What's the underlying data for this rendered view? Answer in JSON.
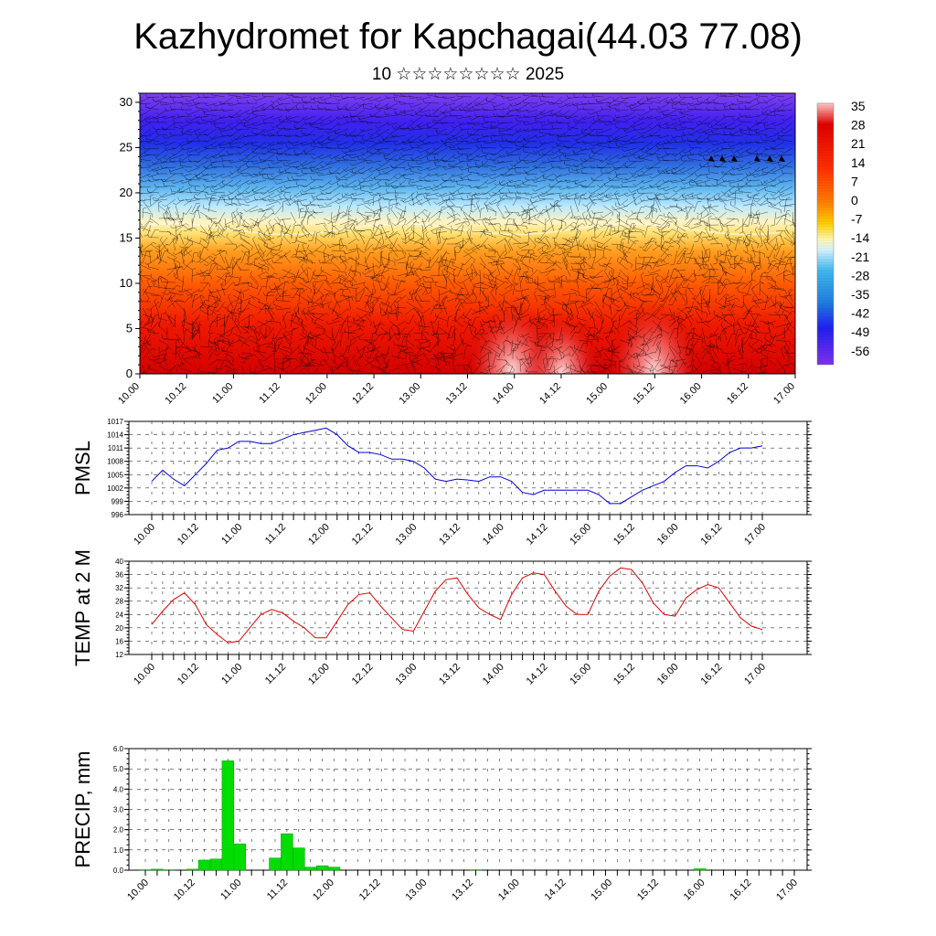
{
  "title": "Kazhydromet for Kapchagai(44.03 77.08)",
  "subtitle": "10 ☆☆☆☆☆☆☆☆ 2025",
  "colors": {
    "pmsl_line": "#0000dd",
    "temp_line": "#dd0000",
    "precip_bar": "#00dd00",
    "precip_edge": "#009900"
  },
  "chart_data": [
    {
      "id": "cross_section",
      "type": "heatmap",
      "title": "",
      "ylim": [
        0,
        31
      ],
      "yticks": [
        "0",
        "5",
        "10",
        "15",
        "20",
        "25",
        "30"
      ],
      "xticks": [
        "10.00",
        "10.12",
        "11.00",
        "11.12",
        "12.00",
        "12.12",
        "13.00",
        "13.12",
        "14.00",
        "14.12",
        "15.00",
        "15.12",
        "16.00",
        "16.12",
        "17.00"
      ],
      "colorbar_labels": [
        "35",
        "28",
        "21",
        "14",
        "7",
        "0",
        "-7",
        "-14",
        "-21",
        "-28",
        "-35",
        "-42",
        "-49",
        "-56"
      ],
      "zero_isotherm_level": 16
    },
    {
      "id": "pmsl",
      "type": "line",
      "ylabel": "PMSL",
      "ylim": [
        996,
        1017
      ],
      "yticks": [
        "996",
        "999",
        "1002",
        "1005",
        "1008",
        "1011",
        "1014",
        "1017"
      ],
      "xticks": [
        "10.00",
        "10.12",
        "11.00",
        "11.12",
        "12.00",
        "12.12",
        "13.00",
        "13.12",
        "14.00",
        "14.12",
        "15.00",
        "15.12",
        "16.00",
        "16.12",
        "17.00"
      ],
      "series": [
        {
          "values": [
            1003.5,
            1006,
            1004,
            1002.5,
            1005,
            1007.5,
            1010.5,
            1011,
            1012.5,
            1012.5,
            1012,
            1012,
            1013,
            1014,
            1014.5,
            1015,
            1015.5,
            1014,
            1011.5,
            1010,
            1010,
            1009.5,
            1008.5,
            1008.5,
            1008,
            1006.5,
            1004,
            1003.5,
            1004,
            1003.8,
            1003.5,
            1004.5,
            1004.5,
            1003.5,
            1001,
            1000.5,
            1001.5,
            1001.5,
            1001.5,
            1001.5,
            1001.5,
            1000.5,
            998.5,
            998.5,
            1000,
            1001.5,
            1002.5,
            1003.5,
            1005.5,
            1007,
            1007,
            1006.5,
            1008,
            1010,
            1011,
            1011,
            1011.5
          ]
        }
      ]
    },
    {
      "id": "temp",
      "type": "line",
      "ylabel": "TEMP at 2 M",
      "ylim": [
        12,
        40
      ],
      "yticks": [
        "12",
        "16",
        "20",
        "24",
        "28",
        "32",
        "36",
        "40"
      ],
      "xticks": [
        "10.00",
        "10.12",
        "11.00",
        "11.12",
        "12.00",
        "12.12",
        "13.00",
        "13.12",
        "14.00",
        "14.12",
        "15.00",
        "15.12",
        "16.00",
        "16.12",
        "17.00"
      ],
      "series": [
        {
          "values": [
            21,
            25,
            28.5,
            30.5,
            27,
            21,
            18,
            15.5,
            16,
            20,
            24,
            25.5,
            24.5,
            22,
            20,
            17,
            17,
            22,
            27,
            30,
            30.5,
            26.5,
            23,
            19.5,
            19,
            25,
            31,
            34.5,
            35,
            30,
            26,
            24,
            22.5,
            30,
            35,
            36.5,
            36,
            31,
            26.5,
            24,
            24,
            31,
            35.5,
            38,
            37.5,
            33.5,
            27.5,
            24,
            23.5,
            29,
            31.5,
            33,
            32,
            27.5,
            23,
            20.5,
            19.5
          ]
        }
      ]
    },
    {
      "id": "precip",
      "type": "bar",
      "ylabel": "PRECIP, mm",
      "ylim": [
        0,
        6
      ],
      "yticks": [
        "0.0",
        "1.0",
        "2.0",
        "3.0",
        "4.0",
        "5.0",
        "6.0"
      ],
      "xticks": [
        "10.00",
        "10.12",
        "11.00",
        "11.12",
        "12.00",
        "12.12",
        "13.00",
        "13.12",
        "14.00",
        "14.12",
        "15.00",
        "15.12",
        "16.00",
        "16.12",
        "17.00"
      ],
      "values": [
        0.02,
        0.05,
        0.02,
        0,
        0.05,
        0.5,
        0.55,
        5.4,
        1.3,
        0,
        0,
        0.6,
        1.8,
        1.1,
        0.15,
        0.22,
        0.15,
        0,
        0,
        0,
        0,
        0,
        0,
        0,
        0,
        0,
        0,
        0,
        0.02,
        0,
        0,
        0,
        0,
        0,
        0,
        0,
        0,
        0,
        0,
        0,
        0,
        0,
        0,
        0,
        0,
        0,
        0,
        0.07,
        0,
        0,
        0,
        0,
        0,
        0,
        0,
        0
      ]
    }
  ]
}
